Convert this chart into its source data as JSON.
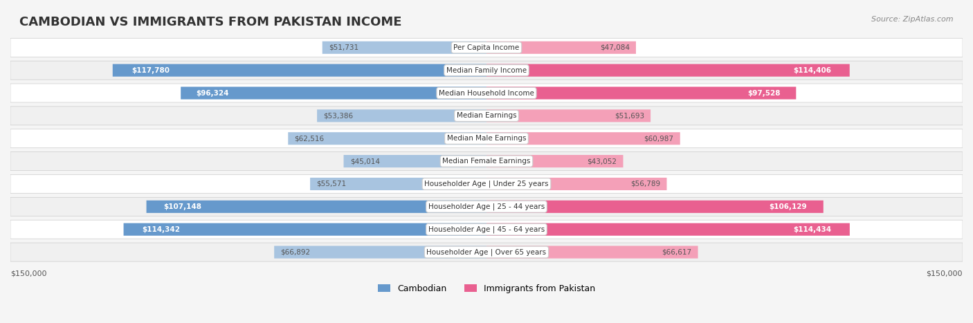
{
  "title": "CAMBODIAN VS IMMIGRANTS FROM PAKISTAN INCOME",
  "source": "Source: ZipAtlas.com",
  "categories": [
    "Per Capita Income",
    "Median Family Income",
    "Median Household Income",
    "Median Earnings",
    "Median Male Earnings",
    "Median Female Earnings",
    "Householder Age | Under 25 years",
    "Householder Age | 25 - 44 years",
    "Householder Age | 45 - 64 years",
    "Householder Age | Over 65 years"
  ],
  "cambodian_values": [
    51731,
    117780,
    96324,
    53386,
    62516,
    45014,
    55571,
    107148,
    114342,
    66892
  ],
  "pakistan_values": [
    47084,
    114406,
    97528,
    51693,
    60987,
    43052,
    56789,
    106129,
    114434,
    66617
  ],
  "cambodian_labels": [
    "$51,731",
    "$117,780",
    "$96,324",
    "$53,386",
    "$62,516",
    "$45,014",
    "$55,571",
    "$107,148",
    "$114,342",
    "$66,892"
  ],
  "pakistan_labels": [
    "$47,084",
    "$114,406",
    "$97,528",
    "$51,693",
    "$60,987",
    "$43,052",
    "$56,789",
    "$106,129",
    "$114,434",
    "$66,617"
  ],
  "max_value": 150000,
  "cambodian_color_light": "#a8c4e0",
  "cambodian_color_dark": "#6699cc",
  "pakistan_color_light": "#f4a0b8",
  "pakistan_color_dark": "#e96090",
  "bg_color": "#f5f5f5",
  "row_bg_color": "#ffffff",
  "alt_row_bg_color": "#f0f0f0",
  "label_color_dark": "#ffffff",
  "label_color_light": "#555555",
  "dark_threshold": 80000,
  "ylabel_fontsize": 8.5,
  "value_fontsize": 8.5
}
